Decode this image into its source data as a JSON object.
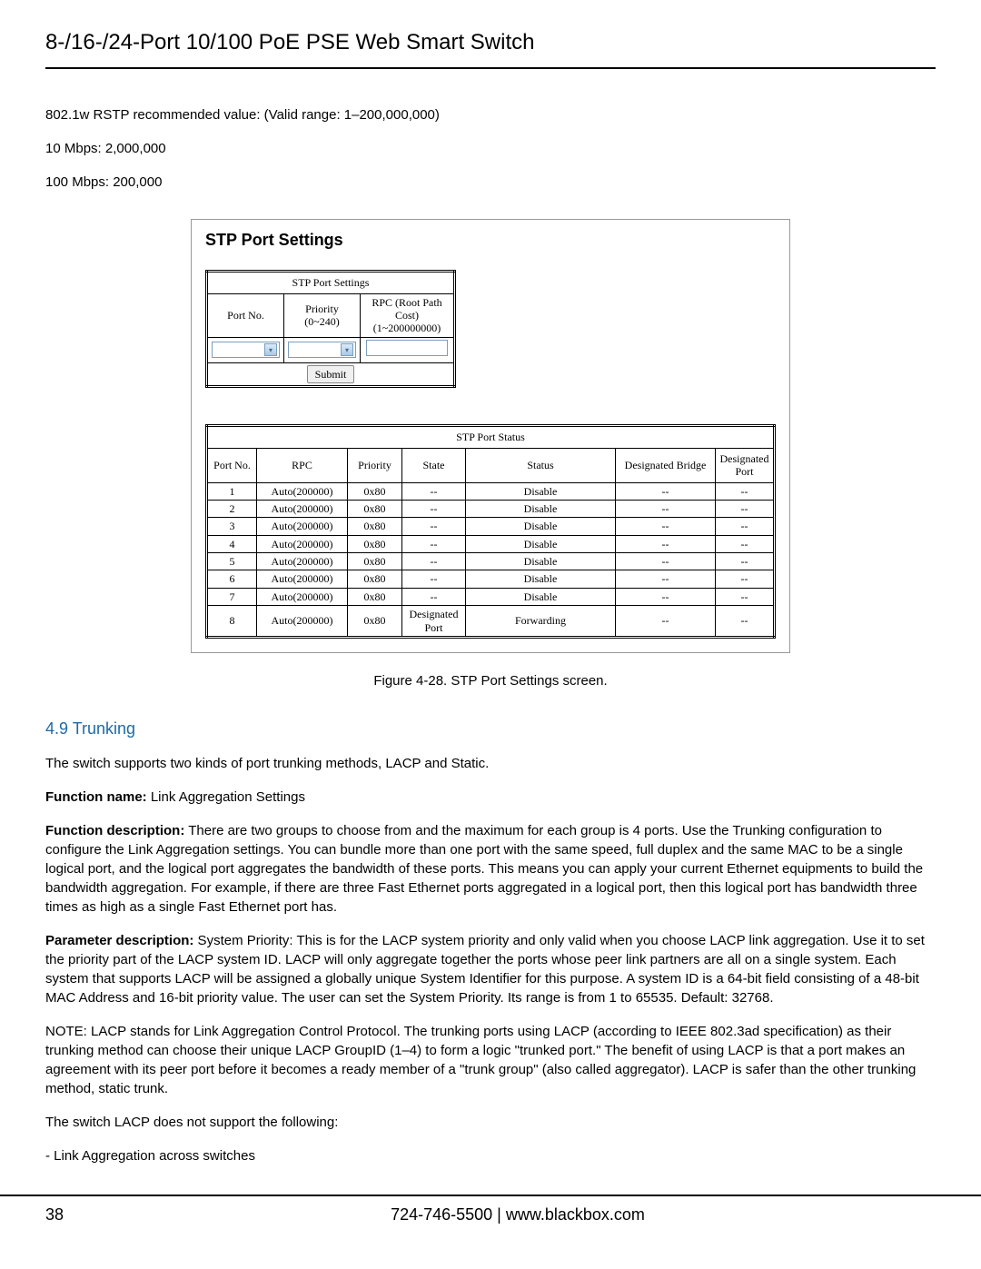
{
  "header": {
    "title": "8-/16-/24-Port 10/100 PoE PSE Web Smart Switch"
  },
  "body": {
    "intro_line": "802.1w RSTP recommended value: (Valid range: 1–200,000,000)",
    "line_10mbps": "10 Mbps: 2,000,000",
    "line_100mbps": "100 Mbps: 200,000"
  },
  "screenshot": {
    "title": "STP Port Settings",
    "settings": {
      "caption": "STP Port Settings",
      "col1": "Port No.",
      "col2_l1": "Priority",
      "col2_l2": "(0~240)",
      "col3_l1": "RPC (Root Path Cost)",
      "col3_l2": "(1~200000000)",
      "submit": "Submit"
    },
    "status": {
      "caption": "STP Port Status",
      "headers": {
        "port_no": "Port No.",
        "rpc": "RPC",
        "priority": "Priority",
        "state": "State",
        "status": "Status",
        "des_bridge": "Designated Bridge",
        "des_port_l1": "Designated",
        "des_port_l2": "Port"
      },
      "rows": [
        {
          "port": "1",
          "rpc": "Auto(200000)",
          "priority": "0x80",
          "state": "--",
          "status": "Disable",
          "db": "--",
          "dp": "--"
        },
        {
          "port": "2",
          "rpc": "Auto(200000)",
          "priority": "0x80",
          "state": "--",
          "status": "Disable",
          "db": "--",
          "dp": "--"
        },
        {
          "port": "3",
          "rpc": "Auto(200000)",
          "priority": "0x80",
          "state": "--",
          "status": "Disable",
          "db": "--",
          "dp": "--"
        },
        {
          "port": "4",
          "rpc": "Auto(200000)",
          "priority": "0x80",
          "state": "--",
          "status": "Disable",
          "db": "--",
          "dp": "--"
        },
        {
          "port": "5",
          "rpc": "Auto(200000)",
          "priority": "0x80",
          "state": "--",
          "status": "Disable",
          "db": "--",
          "dp": "--"
        },
        {
          "port": "6",
          "rpc": "Auto(200000)",
          "priority": "0x80",
          "state": "--",
          "status": "Disable",
          "db": "--",
          "dp": "--"
        },
        {
          "port": "7",
          "rpc": "Auto(200000)",
          "priority": "0x80",
          "state": "--",
          "status": "Disable",
          "db": "--",
          "dp": "--"
        },
        {
          "port": "8",
          "rpc": "Auto(200000)",
          "priority": "0x80",
          "state": "Designated Port",
          "status": "Forwarding",
          "db": "--",
          "dp": "--"
        }
      ]
    }
  },
  "figure_caption": "Figure 4-28. STP Port Settings screen.",
  "section": {
    "heading": "4.9 Trunking",
    "p1": "The switch supports two kinds of port trunking methods, LACP and Static.",
    "func_name_label": "Function name:",
    "func_name_value": "  Link Aggregation Settings",
    "func_desc_label": "Function description:",
    "func_desc_value": " There are two groups to choose from and the maximum for each group is 4 ports. Use the Trunking configuration to configure the Link Aggregation settings. You can bundle more than one port with the same speed, full duplex and the same MAC to be a single logical port, and the logical port aggregates the bandwidth of these ports. This means you can apply your current Ethernet equipments to build the bandwidth aggregation. For example, if there are three Fast Ethernet ports aggregated in a logical port, then this logical port has bandwidth three times as high as a single Fast Ethernet port has.",
    "param_label": "Parameter description:",
    "param_value": " System Priority: This is for the LACP system priority and only valid when you choose LACP link aggregation. Use it to set the priority part of the LACP system ID. LACP will only aggregate together the ports whose peer link partners are all on a single system. Each system that supports LACP will be assigned a globally unique System Identifier for this purpose. A system ID is a 64-bit field consisting of a 48-bit MAC Address and 16-bit priority value. The user can set the System Priority. Its range is from 1 to 65535. Default: 32768.",
    "note": "NOTE: LACP stands for Link Aggregation Control Protocol. The trunking ports using LACP (according to IEEE 802.3ad specification) as their trunking method can choose their unique LACP GroupID (1–4) to form a logic \"trunked port.\" The benefit of using LACP is that a port makes an agreement with its peer port before it becomes a ready member of a \"trunk group\" (also called aggregator). LACP is safer than the other trunking method, static trunk.",
    "p_unsupported": "The switch LACP does not support the following:",
    "bullet1": "- Link Aggregation across switches"
  },
  "footer": {
    "page_num": "38",
    "phone_web": "724-746-5500   |   www.blackbox.com"
  }
}
